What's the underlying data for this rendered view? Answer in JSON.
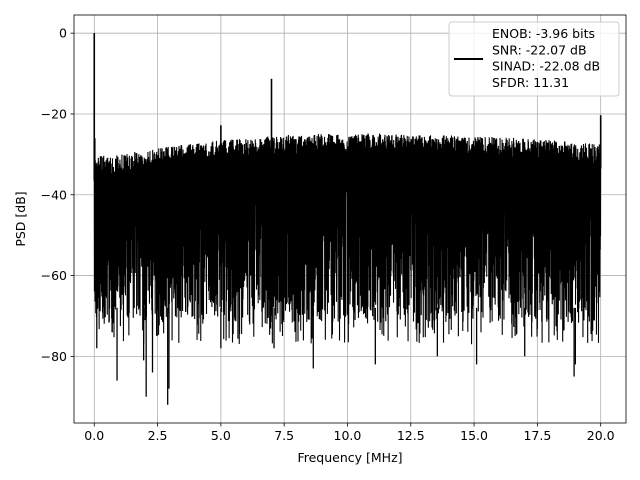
{
  "chart_data": {
    "type": "line",
    "xlabel": "Frequency [MHz]",
    "ylabel": "PSD [dB]",
    "xlim": [
      -0.8,
      21.0
    ],
    "ylim": [
      -96.5,
      4.5
    ],
    "xticks": [
      0.0,
      2.5,
      5.0,
      7.5,
      10.0,
      12.5,
      15.0,
      17.5,
      20.0
    ],
    "xtick_labels": [
      "0.0",
      "2.5",
      "5.0",
      "7.5",
      "10.0",
      "12.5",
      "15.0",
      "17.5",
      "20.0"
    ],
    "yticks": [
      0,
      -20,
      -40,
      -60,
      -80
    ],
    "ytick_labels": [
      "0",
      "−20",
      "−40",
      "−60",
      "−80"
    ],
    "grid": true,
    "line_color": "#000000",
    "legend": {
      "placement": "upper right",
      "entries": [
        "ENOB: -3.96 bits",
        "SNR: -22.07 dB",
        "SINAD: -22.08 dB",
        "SFDR: 11.31"
      ]
    },
    "series": [
      {
        "x_range": [
          0.0,
          20.0
        ],
        "noise_ceiling": [
          [
            0.0,
            -30.5
          ],
          [
            1.0,
            -30.0
          ],
          [
            3.0,
            -28.0
          ],
          [
            5.0,
            -26.5
          ],
          [
            8.0,
            -25.0
          ],
          [
            11.0,
            -24.8
          ],
          [
            14.0,
            -25.3
          ],
          [
            17.0,
            -26.0
          ],
          [
            20.0,
            -27.5
          ]
        ],
        "noise_floor_typical": -72,
        "spikes": [
          {
            "x": 0.0,
            "y": 0.0
          },
          {
            "x": 7.0,
            "y": -11.3
          },
          {
            "x": 5.0,
            "y": -22.8
          },
          {
            "x": 20.0,
            "y": -20.3
          },
          {
            "x": 0.02,
            "y": -26.0
          }
        ],
        "dips": [
          {
            "x": 0.1,
            "y": -78
          },
          {
            "x": 0.9,
            "y": -86
          },
          {
            "x": 1.95,
            "y": -81
          },
          {
            "x": 2.05,
            "y": -90
          },
          {
            "x": 2.3,
            "y": -84
          },
          {
            "x": 2.9,
            "y": -92
          },
          {
            "x": 2.95,
            "y": -88
          },
          {
            "x": 5.0,
            "y": -78
          },
          {
            "x": 7.1,
            "y": -78
          },
          {
            "x": 8.65,
            "y": -83
          },
          {
            "x": 11.1,
            "y": -82
          },
          {
            "x": 13.55,
            "y": -80
          },
          {
            "x": 15.1,
            "y": -82
          },
          {
            "x": 17.0,
            "y": -80
          },
          {
            "x": 18.95,
            "y": -85
          },
          {
            "x": 19.0,
            "y": -82
          }
        ]
      }
    ]
  }
}
